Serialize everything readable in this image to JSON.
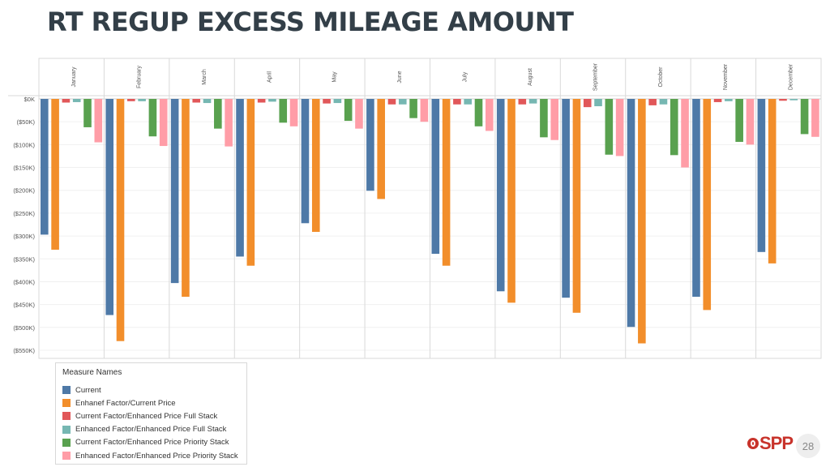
{
  "slide": {
    "title": "RT REGUP EXCESS MILEAGE AMOUNT",
    "page_number": "28",
    "logo_text": "SPP"
  },
  "legend": {
    "title": "Measure Names"
  },
  "chart_data": {
    "type": "bar",
    "title": "RT REGUP EXCESS MILEAGE AMOUNT",
    "xlabel": "",
    "ylabel": "",
    "categories": [
      "January",
      "February",
      "March",
      "April",
      "May",
      "June",
      "July",
      "August",
      "September",
      "October",
      "November",
      "December"
    ],
    "y_ticks": [
      "$0K",
      "($50K)",
      "($100K)",
      "($150K)",
      "($200K)",
      "($250K)",
      "($300K)",
      "($350K)",
      "($400K)",
      "($450K)",
      "($500K)",
      "($550K)"
    ],
    "ylim": [
      -555,
      5
    ],
    "units": "thousands of dollars",
    "grid": true,
    "legend_position": "bottom-left",
    "series": [
      {
        "name": "Current",
        "color": "#4e79a7",
        "values": [
          -297,
          -473,
          -403,
          -345,
          -272,
          -201,
          -339,
          -421,
          -435,
          -499,
          -433,
          -335
        ]
      },
      {
        "name": "Enhanef Factor/Current Price",
        "color": "#f28e2b",
        "values": [
          -330,
          -530,
          -433,
          -365,
          -291,
          -219,
          -365,
          -446,
          -468,
          -535,
          -462,
          -360
        ]
      },
      {
        "name": "Current Factor/Enhanced Price Full Stack",
        "color": "#e15759",
        "values": [
          -8,
          -5,
          -8,
          -8,
          -10,
          -12,
          -12,
          -12,
          -18,
          -14,
          -7,
          -4
        ]
      },
      {
        "name": "Enhanced Factor/Enhanced Price Full Stack",
        "color": "#76b7b2",
        "values": [
          -7,
          -5,
          -9,
          -6,
          -9,
          -12,
          -12,
          -10,
          -16,
          -12,
          -5,
          -3
        ]
      },
      {
        "name": "Current Factor/Enhanced Price Priority Stack",
        "color": "#59a14f",
        "values": [
          -62,
          -82,
          -65,
          -52,
          -48,
          -42,
          -60,
          -84,
          -122,
          -123,
          -94,
          -77
        ]
      },
      {
        "name": "Enhanced Factor/Enhanced Price Priority Stack",
        "color": "#ff9da7",
        "values": [
          -95,
          -103,
          -104,
          -60,
          -65,
          -50,
          -70,
          -90,
          -125,
          -150,
          -100,
          -83
        ]
      }
    ]
  }
}
